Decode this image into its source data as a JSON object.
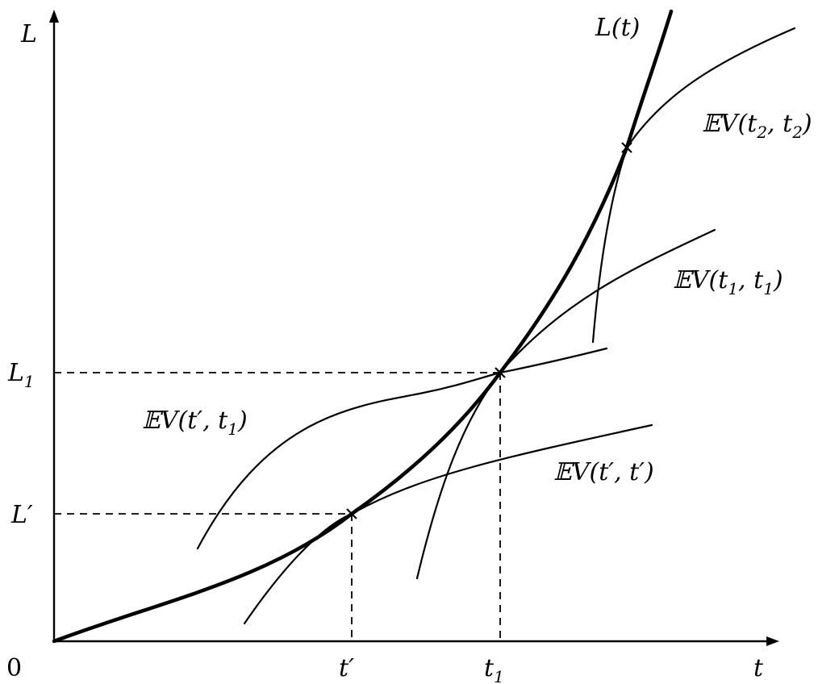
{
  "axes": {
    "y_label": "L",
    "x_label": "t",
    "origin_label": "0"
  },
  "ticks": {
    "x": [
      {
        "base": "t",
        "prime": "′",
        "sub": ""
      },
      {
        "base": "t",
        "prime": "",
        "sub": "1"
      }
    ],
    "y": [
      {
        "base": "L",
        "prime": "′",
        "sub": ""
      },
      {
        "base": "L",
        "prime": "",
        "sub": "1"
      }
    ]
  },
  "curves": {
    "main": {
      "label": "L(t)"
    },
    "ev_t2_t2": {
      "bb": "𝔼",
      "text": "V(t",
      "sub1": "2",
      "mid": ", t",
      "sub2": "2",
      "end": ")"
    },
    "ev_t1_t1": {
      "bb": "𝔼",
      "text": "V(t",
      "sub1": "1",
      "mid": ", t",
      "sub2": "1",
      "end": ")"
    },
    "ev_tp_t1": {
      "bb": "𝔼",
      "text": "V(t′, t",
      "sub1": "1",
      "end": ")"
    },
    "ev_tp_tp": {
      "bb": "𝔼",
      "text": "V(t′, t′)"
    }
  },
  "markers": {
    "symbol": "x"
  },
  "colors": {
    "ink": "#000000",
    "background": "#ffffff"
  }
}
